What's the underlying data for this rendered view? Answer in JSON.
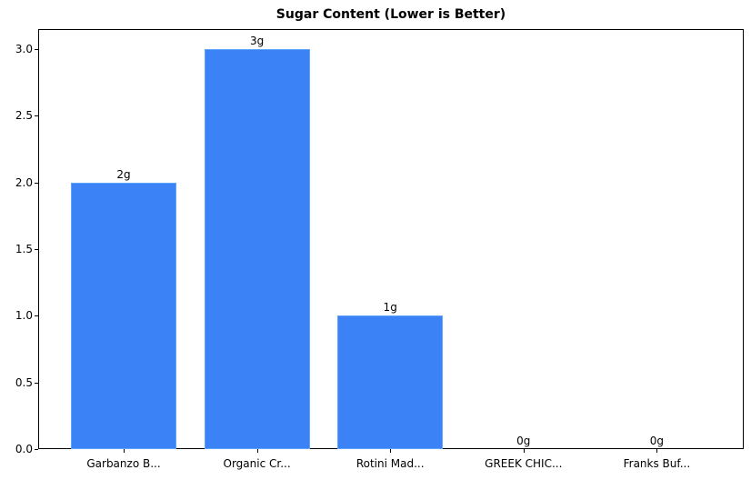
{
  "chart_data": {
    "type": "bar",
    "title": "Sugar Content (Lower is Better)",
    "xlabel": "",
    "ylabel": "",
    "categories": [
      "Garbanzo B...",
      "Organic Cr...",
      "Rotini Mad...",
      "GREEK CHIC...",
      "Franks Buf..."
    ],
    "values": [
      2,
      3,
      1,
      0,
      0
    ],
    "value_labels": [
      "2g",
      "3g",
      "1g",
      "0g",
      "0g"
    ],
    "ylim": [
      0,
      3.15
    ],
    "yticks": [
      "0.0",
      "0.5",
      "1.0",
      "1.5",
      "2.0",
      "2.5",
      "3.0"
    ],
    "grid": false,
    "bar_color": "#3b82f6"
  }
}
